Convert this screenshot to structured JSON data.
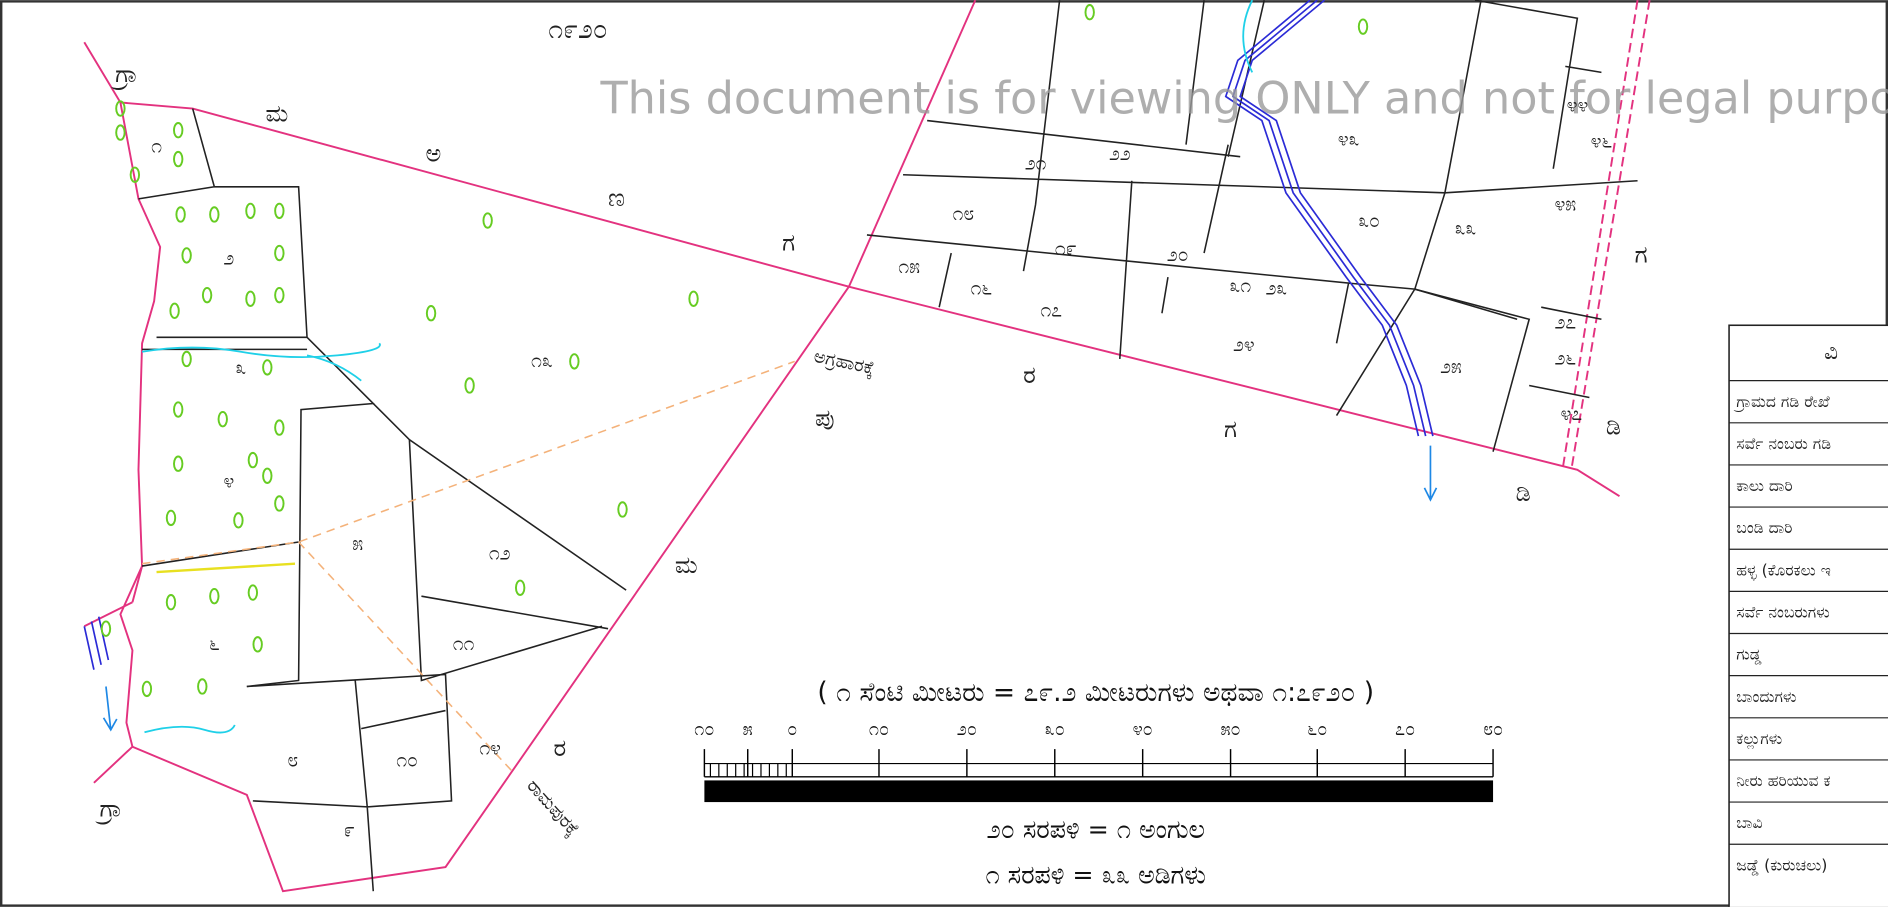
{
  "map": {
    "year": "೧೯೨೦",
    "watermark": "This document is for viewing ONLY and not for legal purpose",
    "scale": {
      "title": "( ೧ ಸೆಂಟಿ ಮೀಟರು = ೭೯.೨ ಮೀಟರುಗಳು ಅಥವಾ ೧:೭೯೨೦ )",
      "ticks": [
        "೧೦",
        "೫",
        "೦",
        "೧೦",
        "೨೦",
        "೩೦",
        "೪೦",
        "೫೦",
        "೬೦",
        "೭೦",
        "೮೦"
      ],
      "chains": "೨೦ ಸರಪಳಿ = ೧ ಅಂಗುಲ",
      "chain_feet": "೧ ಸರಪಳಿ = ೩೩ ಅಡಿಗಳು"
    },
    "directions": [
      "ಅಗ್ರಹಾರಕ್ಕೆ",
      "ರಾಮಪುರಕ್ಕೆ"
    ],
    "boundary_letters": [
      "ಮ",
      "ಅ",
      "ಣ",
      "ಗ",
      "ರ",
      "ಪು",
      "ಮ",
      "ರ",
      "ಗ",
      "ಗ",
      "ಡಿ",
      "ಡಿ",
      "ಗ್ರಾ",
      "ಗ್ರಾ"
    ],
    "plots": [
      "೧",
      "೨",
      "೩",
      "೪",
      "೫",
      "೬",
      "೮",
      "೯",
      "೧೦",
      "೧೧",
      "೧೨",
      "೧೩",
      "೧೪",
      "೧೫",
      "೧೬",
      "೧೭",
      "೧೮",
      "೧೯",
      "೨೦",
      "೨೧",
      "೨೨",
      "೨೩",
      "೨೪",
      "೨೫",
      "೨೬",
      "೨೭",
      "೩೦",
      "೩೧",
      "೩೩",
      "೪೩",
      "೪೪",
      "೪೫",
      "೪೬",
      "೪೭"
    ],
    "legend": {
      "header": "ವಿ",
      "rows": [
        "ಗ್ರಾಮದ ಗಡಿ ರೇಖೆ",
        "ಸರ್ವೆ ನಂಬರು ಗಡಿ",
        "ಕಾಲು ದಾರಿ",
        "ಬಂಡಿ ದಾರಿ",
        "ಹಳ್ಳ (ಕೊರಕಲು ಇ",
        "ಸರ್ವೆ ನಂಬರುಗಳು",
        "ಗುಡ್ಡ",
        "ಬಾಂದುಗಳು",
        "ಕಲ್ಲುಗಳು",
        "ನೀರು ಹರಿಯುವ ಕ",
        "ಬಾವಿ",
        "ಜಡ್ಡೆ (ಕುರುಚಲು)"
      ]
    }
  }
}
